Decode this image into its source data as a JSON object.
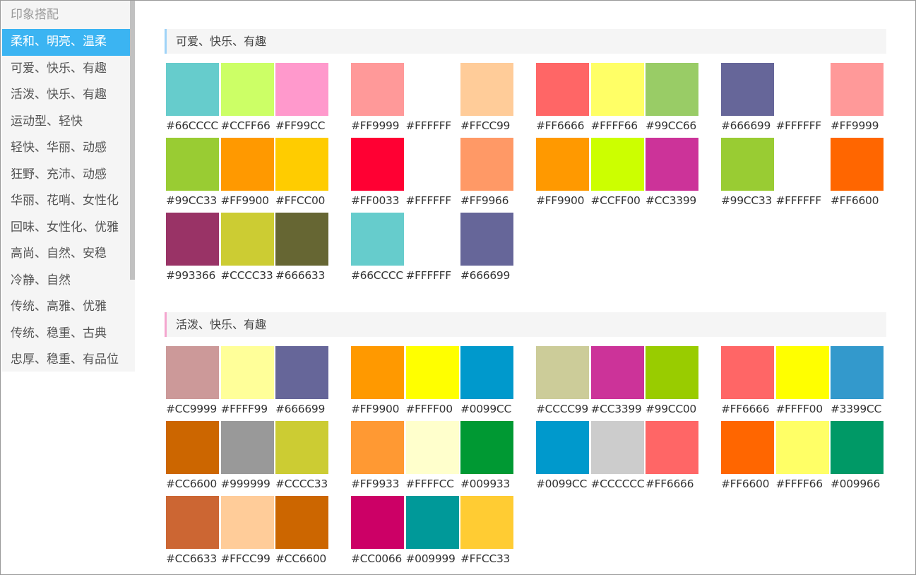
{
  "sidebar": {
    "title": "印象搭配",
    "selected": 0,
    "items": [
      "柔和、明亮、温柔",
      "可爱、快乐、有趣",
      "活泼、快乐、有趣",
      "运动型、轻快",
      "轻快、华丽、动感",
      "狂野、充沛、动感",
      "华丽、花哨、女性化",
      "回味、女性化、优雅",
      "高尚、自然、安稳",
      "冷静、自然",
      "传统、高雅、优雅",
      "传统、稳重、古典",
      "忠厚、稳重、有品位"
    ]
  },
  "sections": [
    {
      "title": "可爱、快乐、有趣",
      "accent": "#9fd3f7",
      "palettes": [
        [
          "#66CCCC",
          "#CCFF66",
          "#FF99CC"
        ],
        [
          "#FF9999",
          "#FFFFFF",
          "#FFCC99"
        ],
        [
          "#FF6666",
          "#FFFF66",
          "#99CC66"
        ],
        [
          "#666699",
          "#FFFFFF",
          "#FF9999"
        ],
        [
          "#99CC33",
          "#FF9900",
          "#FFCC00"
        ],
        [
          "#FF0033",
          "#FFFFFF",
          "#FF9966"
        ],
        [
          "#FF9900",
          "#CCFF00",
          "#CC3399"
        ],
        [
          "#99CC33",
          "#FFFFFF",
          "#FF6600"
        ],
        [
          "#993366",
          "#CCCC33",
          "#666633"
        ],
        [
          "#66CCCC",
          "#FFFFFF",
          "#666699"
        ]
      ]
    },
    {
      "title": "活泼、快乐、有趣",
      "accent": "#f4a6cf",
      "palettes": [
        [
          "#CC9999",
          "#FFFF99",
          "#666699"
        ],
        [
          "#FF9900",
          "#FFFF00",
          "#0099CC"
        ],
        [
          "#CCCC99",
          "#CC3399",
          "#99CC00"
        ],
        [
          "#FF6666",
          "#FFFF00",
          "#3399CC"
        ],
        [
          "#CC6600",
          "#999999",
          "#CCCC33"
        ],
        [
          "#FF9933",
          "#FFFFCC",
          "#009933"
        ],
        [
          "#0099CC",
          "#CCCCCC",
          "#FF6666"
        ],
        [
          "#FF6600",
          "#FFFF66",
          "#009966"
        ],
        [
          "#CC6633",
          "#FFCC99",
          "#CC6600"
        ],
        [
          "#CC0066",
          "#009999",
          "#FFCC33"
        ]
      ]
    }
  ]
}
